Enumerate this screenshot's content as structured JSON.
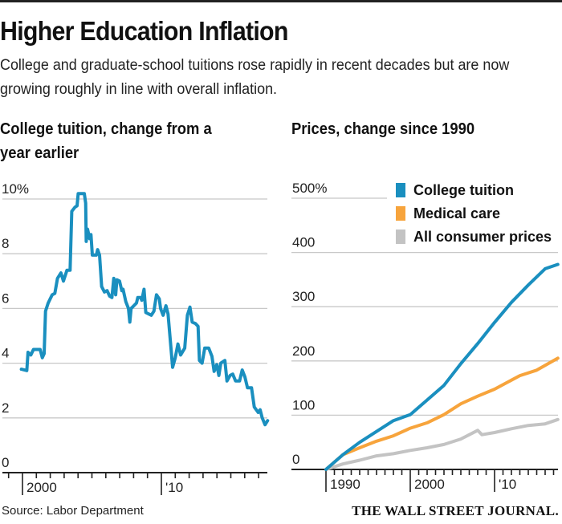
{
  "header": {
    "title": "Higher Education Inflation",
    "subtitle": "College and graduate-school tuitions rose rapidly in recent decades but are now growing roughly in line with overall inflation."
  },
  "source": "Source: Labor Department",
  "logo": "THE WALL STREET JOURNAL.",
  "chart_data": [
    {
      "type": "line",
      "title": "College tuition, change from a year earlier",
      "ylim": [
        0,
        10
      ],
      "yticks": [
        "0",
        "2",
        "4",
        "6",
        "8",
        "10%"
      ],
      "ytick_values": [
        0,
        2,
        4,
        6,
        8,
        10
      ],
      "xticks": [
        "2000",
        "'10"
      ],
      "xtick_values": [
        2000,
        2010
      ],
      "xlim": [
        1998.5,
        2017.7
      ],
      "grid": true,
      "color": "#1a8fbf",
      "series": [
        {
          "x": [
            1999.92,
            2000.31,
            2000.4,
            2000.6,
            2000.79,
            2001.27,
            2001.43,
            2001.56,
            2001.66,
            2001.85,
            2002.14,
            2002.33,
            2002.52,
            2002.77,
            2002.95,
            2003.2,
            2003.43,
            2003.55,
            2003.78,
            2003.93,
            2004.01,
            2004.45,
            2004.55,
            2004.59,
            2004.68,
            2004.84,
            2004.93,
            2005.03,
            2005.32,
            2005.41,
            2005.55,
            2005.7,
            2005.9,
            2006.09,
            2006.28,
            2006.44,
            2006.57,
            2006.71,
            2006.8,
            2006.99,
            2007.15,
            2007.24,
            2007.44,
            2007.63,
            2007.73,
            2007.82,
            2008.02,
            2008.21,
            2008.3,
            2008.5,
            2008.59,
            2008.75,
            2008.88,
            2009.08,
            2009.27,
            2009.46,
            2009.65,
            2009.85,
            2009.94,
            2010.13,
            2010.33,
            2010.48,
            2010.81,
            2011.0,
            2011.19,
            2011.39,
            2011.68,
            2011.87,
            2012.06,
            2012.22,
            2012.45,
            2012.64,
            2012.74,
            2012.93,
            2013.12,
            2013.41,
            2013.64,
            2013.8,
            2013.99,
            2014.14,
            2014.28,
            2014.57,
            2014.72,
            2014.95,
            2015.14,
            2015.34,
            2015.63,
            2015.82,
            2016.01,
            2016.2,
            2016.49,
            2016.69,
            2016.97,
            2017.11,
            2017.26,
            2017.46,
            2017.65
          ],
          "y": [
            3.78,
            3.73,
            4.4,
            4.3,
            4.5,
            4.5,
            4.2,
            4.35,
            5.9,
            6.2,
            6.5,
            6.55,
            7.1,
            7.3,
            7.0,
            7.4,
            7.4,
            9.55,
            9.7,
            9.75,
            10.2,
            10.2,
            9.85,
            8.45,
            8.9,
            8.55,
            8.7,
            7.95,
            7.95,
            8.15,
            7.95,
            6.8,
            6.6,
            6.65,
            6.45,
            6.4,
            7.1,
            6.5,
            7.05,
            7.0,
            6.65,
            6.7,
            6.25,
            6.0,
            5.5,
            6.0,
            6.1,
            6.2,
            6.4,
            6.4,
            6.3,
            6.7,
            5.85,
            5.8,
            5.75,
            5.9,
            6.5,
            6.35,
            6.0,
            5.75,
            6.1,
            5.8,
            3.85,
            4.2,
            4.7,
            4.3,
            4.55,
            5.75,
            6.05,
            5.5,
            5.45,
            5.35,
            4.1,
            4.0,
            4.55,
            4.55,
            4.25,
            3.7,
            3.95,
            3.55,
            4.0,
            4.1,
            3.35,
            3.55,
            3.6,
            3.35,
            3.35,
            3.75,
            3.5,
            3.1,
            3.1,
            2.4,
            2.2,
            2.3,
            2.0,
            1.75,
            1.9
          ]
        }
      ]
    },
    {
      "type": "line",
      "title": "Prices, change since 1990",
      "ylim": [
        0,
        500
      ],
      "yticks": [
        "0",
        "100",
        "200",
        "300",
        "400",
        "500%"
      ],
      "ytick_values": [
        0,
        100,
        200,
        300,
        400,
        500
      ],
      "xticks": [
        "1990",
        "2000",
        "'10"
      ],
      "xtick_values": [
        1990,
        2000,
        2010
      ],
      "xlim": [
        1985.5,
        2017.6
      ],
      "grid": true,
      "legend": "top-right",
      "series": [
        {
          "name": "College tuition",
          "color": "#1a8fbf",
          "x": [
            1990,
            1992,
            1994,
            1996,
            1998,
            2000,
            2002,
            2004,
            2006,
            2008,
            2010,
            2012,
            2014,
            2016,
            2017.5
          ],
          "y": [
            0,
            27,
            50,
            70,
            90,
            101,
            128,
            155,
            195,
            232,
            271,
            308,
            340,
            370,
            378
          ]
        },
        {
          "name": "Medical care",
          "color": "#f7a43c",
          "x": [
            1990,
            1992,
            1994,
            1996,
            1998,
            2000,
            2002,
            2004,
            2006,
            2008,
            2010,
            2013,
            2015,
            2017.5
          ],
          "y": [
            0,
            27,
            40,
            52,
            62,
            76,
            86,
            101,
            121,
            135,
            148,
            173,
            183,
            205
          ]
        },
        {
          "name": "All consumer prices",
          "color": "#c3c3c3",
          "x": [
            1990,
            1992,
            1994,
            1996,
            1998,
            2000,
            2002,
            2004,
            2006,
            2008,
            2008.5,
            2010,
            2012,
            2014,
            2016,
            2017.5
          ],
          "y": [
            0,
            10,
            17,
            25,
            29,
            35,
            40,
            46,
            56,
            72,
            64,
            68,
            75,
            81,
            84,
            92
          ]
        }
      ]
    }
  ]
}
